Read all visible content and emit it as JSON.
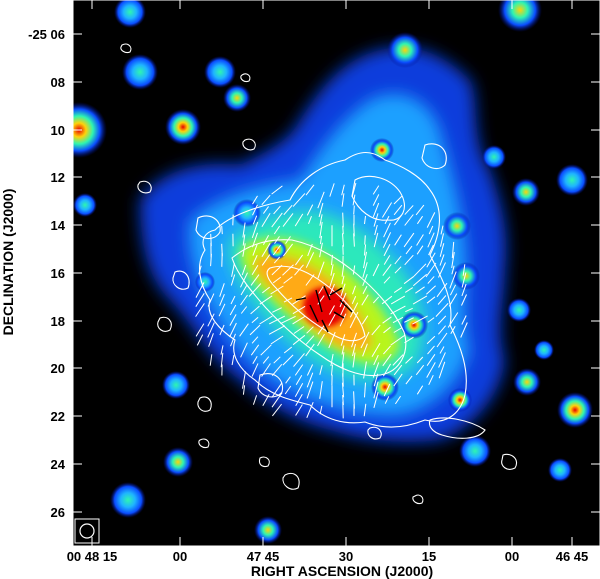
{
  "figure": {
    "x_axis_title": "RIGHT ASCENSION (J2000)",
    "y_axis_title": "DECLINATION (J2000)",
    "x_tick_labels": [
      "00 48 15",
      "00",
      "47 45",
      "30",
      "15",
      "00",
      "46 45"
    ],
    "y_tick_labels": [
      "-25 06",
      "08",
      "10",
      "12",
      "14",
      "16",
      "18",
      "20",
      "22",
      "24",
      "26"
    ],
    "colors": {
      "background": "#000000",
      "contours": "#ffffff",
      "frame": "#ffffff",
      "ticks": "#ffffff"
    },
    "colormap": [
      "#000000",
      "#000a8c",
      "#0a4cff",
      "#1fb4ff",
      "#2ff5b0",
      "#b8f51c",
      "#ffd20a",
      "#ff7a0a",
      "#e60000"
    ],
    "beam_marker": "circle-in-square"
  }
}
